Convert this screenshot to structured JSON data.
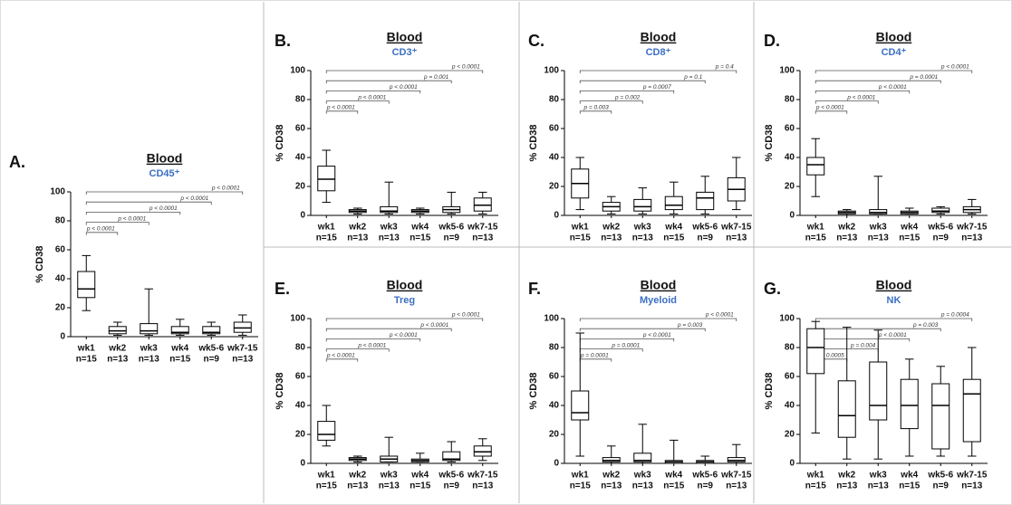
{
  "chart_data": [
    {
      "type": "box",
      "panel": "A.",
      "title": "Blood",
      "subtitle": "CD45⁺",
      "y_label": "% CD38",
      "categories": [
        "wk1",
        "wk2",
        "wk3",
        "wk4",
        "wk5-6",
        "wk7-15"
      ],
      "n_labels": [
        "n=15",
        "n=13",
        "n=13",
        "n=15",
        "n=9",
        "n=13"
      ],
      "boxes": [
        {
          "min": 18,
          "q1": 27,
          "median": 33,
          "q3": 45,
          "max": 56
        },
        {
          "min": 1,
          "q1": 2,
          "median": 4,
          "q3": 7,
          "max": 10
        },
        {
          "min": 1,
          "q1": 2,
          "median": 4,
          "q3": 9,
          "max": 33
        },
        {
          "min": 1,
          "q1": 2,
          "median": 3,
          "q3": 7,
          "max": 12
        },
        {
          "min": 1,
          "q1": 2,
          "median": 3,
          "q3": 7,
          "max": 10
        },
        {
          "min": 1,
          "q1": 3,
          "median": 6,
          "q3": 10,
          "max": 15
        }
      ],
      "pvalues": [
        "p < 0.0001",
        "p < 0.0001",
        "p < 0.0001",
        "p < 0.0001",
        "p < 0.0001"
      ],
      "ylim": [
        0,
        100
      ],
      "yticks": [
        0,
        20,
        40,
        60,
        80,
        100
      ],
      "subtitle_color": "#3b6fc4"
    },
    {
      "type": "box",
      "panel": "B.",
      "title": "Blood",
      "subtitle": "CD3⁺",
      "y_label": "% CD38",
      "categories": [
        "wk1",
        "wk2",
        "wk3",
        "wk4",
        "wk5-6",
        "wk7-15"
      ],
      "n_labels": [
        "n=15",
        "n=13",
        "n=13",
        "n=15",
        "n=9",
        "n=13"
      ],
      "boxes": [
        {
          "min": 9,
          "q1": 17,
          "median": 25,
          "q3": 34,
          "max": 45
        },
        {
          "min": 1,
          "q1": 2,
          "median": 3,
          "q3": 4,
          "max": 5
        },
        {
          "min": 1,
          "q1": 2,
          "median": 3,
          "q3": 6,
          "max": 23
        },
        {
          "min": 1,
          "q1": 2,
          "median": 3,
          "q3": 4,
          "max": 5
        },
        {
          "min": 1,
          "q1": 2,
          "median": 4,
          "q3": 6,
          "max": 16
        },
        {
          "min": 1,
          "q1": 3,
          "median": 7,
          "q3": 12,
          "max": 16
        }
      ],
      "pvalues": [
        "p < 0.0001",
        "p < 0.0001",
        "p < 0.0001",
        "p = 0.001",
        "p < 0.0001"
      ],
      "ylim": [
        0,
        100
      ],
      "yticks": [
        0,
        20,
        40,
        60,
        80,
        100
      ],
      "subtitle_color": "#3b6fc4"
    },
    {
      "type": "box",
      "panel": "C.",
      "title": "Blood",
      "subtitle": "CD8⁺",
      "y_label": "% CD38",
      "categories": [
        "wk1",
        "wk2",
        "wk3",
        "wk4",
        "wk5-6",
        "wk7-15"
      ],
      "n_labels": [
        "n=15",
        "n=13",
        "n=13",
        "n=15",
        "n=9",
        "n=13"
      ],
      "boxes": [
        {
          "min": 4,
          "q1": 12,
          "median": 22,
          "q3": 32,
          "max": 40
        },
        {
          "min": 1,
          "q1": 3,
          "median": 6,
          "q3": 9,
          "max": 13
        },
        {
          "min": 1,
          "q1": 3,
          "median": 6,
          "q3": 11,
          "max": 19
        },
        {
          "min": 1,
          "q1": 4,
          "median": 7,
          "q3": 13,
          "max": 23
        },
        {
          "min": 1,
          "q1": 4,
          "median": 12,
          "q3": 16,
          "max": 27
        },
        {
          "min": 4,
          "q1": 10,
          "median": 18,
          "q3": 26,
          "max": 40
        }
      ],
      "pvalues": [
        "p = 0.003",
        "p = 0.002",
        "p = 0.0007",
        "p = 0.1",
        "p = 0.4"
      ],
      "ylim": [
        0,
        100
      ],
      "yticks": [
        0,
        20,
        40,
        60,
        80,
        100
      ],
      "subtitle_color": "#3b6fc4"
    },
    {
      "type": "box",
      "panel": "D.",
      "title": "Blood",
      "subtitle": "CD4⁺",
      "y_label": "% CD38",
      "categories": [
        "wk1",
        "wk2",
        "wk3",
        "wk4",
        "wk5-6",
        "wk7-15"
      ],
      "n_labels": [
        "n=15",
        "n=13",
        "n=13",
        "n=15",
        "n=9",
        "n=13"
      ],
      "boxes": [
        {
          "min": 13,
          "q1": 28,
          "median": 35,
          "q3": 40,
          "max": 53
        },
        {
          "min": 0,
          "q1": 1,
          "median": 2,
          "q3": 3,
          "max": 4
        },
        {
          "min": 1,
          "q1": 1,
          "median": 2,
          "q3": 4,
          "max": 27
        },
        {
          "min": 1,
          "q1": 1,
          "median": 2,
          "q3": 3,
          "max": 5
        },
        {
          "min": 1,
          "q1": 2,
          "median": 3,
          "q3": 5,
          "max": 6
        },
        {
          "min": 1,
          "q1": 2,
          "median": 4,
          "q3": 6,
          "max": 11
        }
      ],
      "pvalues": [
        "p < 0.0001",
        "p < 0.0001",
        "p < 0.0001",
        "p = 0.0001",
        "p < 0.0001"
      ],
      "ylim": [
        0,
        100
      ],
      "yticks": [
        0,
        20,
        40,
        60,
        80,
        100
      ],
      "subtitle_color": "#3b6fc4"
    },
    {
      "type": "box",
      "panel": "E.",
      "title": "Blood",
      "subtitle": "Treg",
      "y_label": "% CD38",
      "categories": [
        "wk1",
        "wk2",
        "wk3",
        "wk4",
        "wk5-6",
        "wk7-15"
      ],
      "n_labels": [
        "n=15",
        "n=13",
        "n=13",
        "n=15",
        "n=9",
        "n=13"
      ],
      "boxes": [
        {
          "min": 12,
          "q1": 16,
          "median": 20,
          "q3": 29,
          "max": 40
        },
        {
          "min": 1,
          "q1": 2,
          "median": 3,
          "q3": 4,
          "max": 5
        },
        {
          "min": 1,
          "q1": 1,
          "median": 3,
          "q3": 5,
          "max": 18
        },
        {
          "min": 1,
          "q1": 1,
          "median": 2,
          "q3": 3,
          "max": 7
        },
        {
          "min": 1,
          "q1": 2,
          "median": 3,
          "q3": 8,
          "max": 15
        },
        {
          "min": 2,
          "q1": 5,
          "median": 8,
          "q3": 12,
          "max": 17
        }
      ],
      "pvalues": [
        "p < 0.0001",
        "p < 0.0001",
        "p < 0.0001",
        "p < 0.0001",
        "p < 0.0001"
      ],
      "ylim": [
        0,
        100
      ],
      "yticks": [
        0,
        20,
        40,
        60,
        80,
        100
      ],
      "subtitle_color": "#3b6fc4"
    },
    {
      "type": "box",
      "panel": "F.",
      "title": "Blood",
      "subtitle": "Myeloid",
      "y_label": "% CD38",
      "categories": [
        "wk1",
        "wk2",
        "wk3",
        "wk4",
        "wk5-6",
        "wk7-15"
      ],
      "n_labels": [
        "n=15",
        "n=13",
        "n=13",
        "n=15",
        "n=9",
        "n=13"
      ],
      "boxes": [
        {
          "min": 5,
          "q1": 30,
          "median": 35,
          "q3": 50,
          "max": 90
        },
        {
          "min": 0,
          "q1": 1,
          "median": 2,
          "q3": 4,
          "max": 12
        },
        {
          "min": 0,
          "q1": 1,
          "median": 2,
          "q3": 7,
          "max": 27
        },
        {
          "min": 0,
          "q1": 0,
          "median": 1,
          "q3": 2,
          "max": 16
        },
        {
          "min": 0,
          "q1": 0,
          "median": 1,
          "q3": 2,
          "max": 5
        },
        {
          "min": 0,
          "q1": 1,
          "median": 2,
          "q3": 4,
          "max": 13
        }
      ],
      "pvalues": [
        "p = 0.0001",
        "p = 0.0001",
        "p < 0.0001",
        "p = 0.003",
        "p < 0.0001"
      ],
      "ylim": [
        0,
        100
      ],
      "yticks": [
        0,
        20,
        40,
        60,
        80,
        100
      ],
      "subtitle_color": "#3b6fc4"
    },
    {
      "type": "box",
      "panel": "G.",
      "title": "Blood",
      "subtitle": "NK",
      "y_label": "% CD38",
      "categories": [
        "wk1",
        "wk2",
        "wk3",
        "wk4",
        "wk5-6",
        "wk7-15"
      ],
      "n_labels": [
        "n=15",
        "n=13",
        "n=13",
        "n=15",
        "n=9",
        "n=13"
      ],
      "boxes": [
        {
          "min": 21,
          "q1": 62,
          "median": 80,
          "q3": 93,
          "max": 98
        },
        {
          "min": 3,
          "q1": 18,
          "median": 33,
          "q3": 57,
          "max": 94
        },
        {
          "min": 3,
          "q1": 30,
          "median": 40,
          "q3": 70,
          "max": 92
        },
        {
          "min": 5,
          "q1": 24,
          "median": 40,
          "q3": 58,
          "max": 72
        },
        {
          "min": 5,
          "q1": 10,
          "median": 40,
          "q3": 55,
          "max": 67
        },
        {
          "min": 5,
          "q1": 15,
          "median": 48,
          "q3": 58,
          "max": 80
        }
      ],
      "pvalues": [
        "p = 0.0005",
        "p = 0.004",
        "p < 0.0001",
        "p = 0.003",
        "p = 0.0004"
      ],
      "ylim": [
        0,
        100
      ],
      "yticks": [
        0,
        20,
        40,
        60,
        80,
        100
      ],
      "subtitle_color": "#3b6fc4"
    }
  ]
}
